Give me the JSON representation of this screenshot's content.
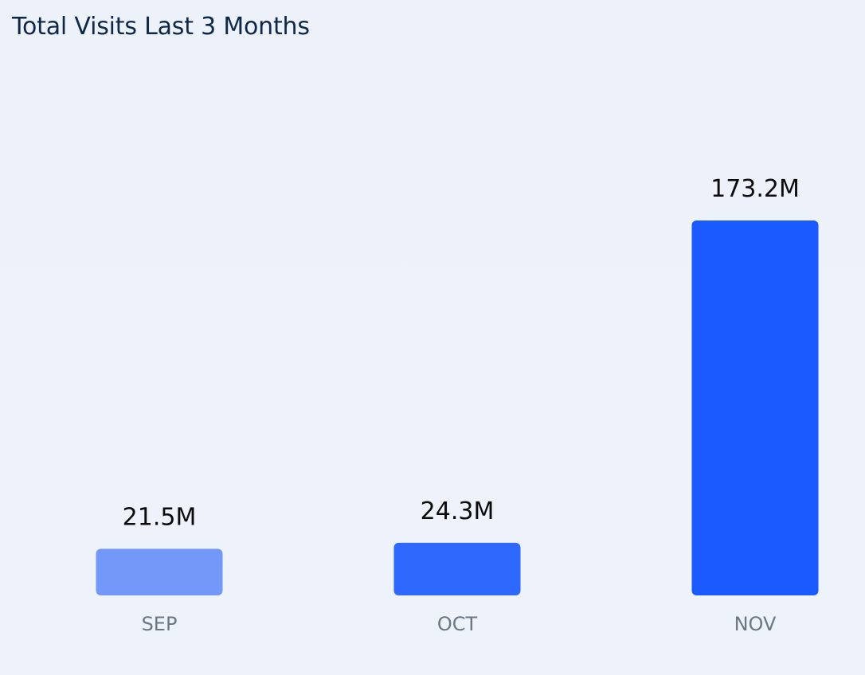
{
  "chart_data": {
    "type": "bar",
    "title": "Total Visits Last 3 Months",
    "categories": [
      "SEP",
      "OCT",
      "NOV"
    ],
    "values": [
      21.5,
      24.3,
      173.2
    ],
    "value_labels": [
      "21.5M",
      "24.3M",
      "173.2M"
    ],
    "bar_colors": [
      "#7497fa",
      "#2e68fc",
      "#1a5afe"
    ],
    "xlabel": "",
    "ylabel": "",
    "grid": false,
    "legend": "none",
    "ylim": [
      0,
      173.2
    ]
  }
}
